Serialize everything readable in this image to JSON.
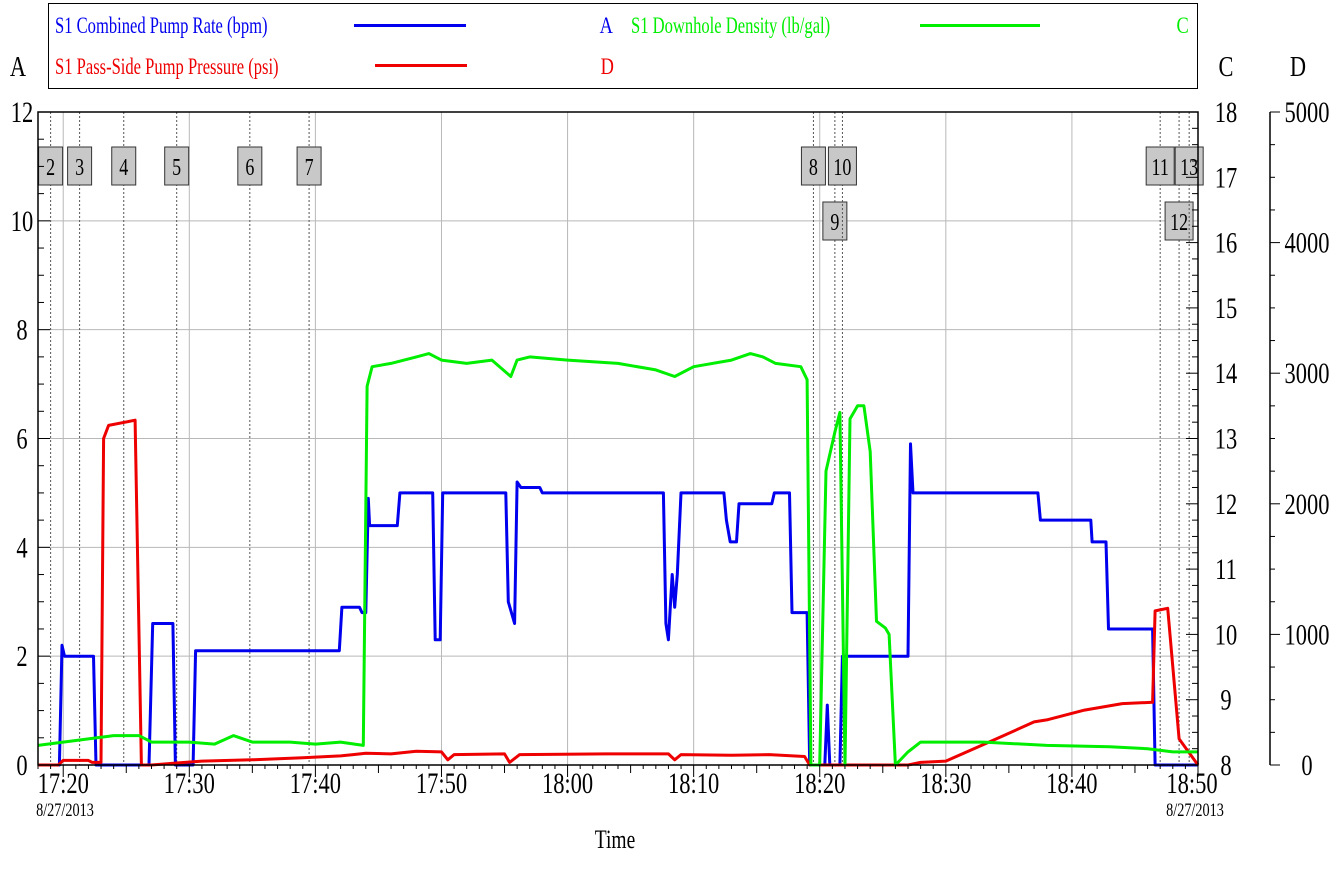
{
  "chart_data": {
    "type": "line",
    "xlabel": "Time",
    "x_tick_labels": [
      "17:20",
      "17:30",
      "17:40",
      "17:50",
      "18:00",
      "18:10",
      "18:20",
      "18:30",
      "18:40",
      "18:50"
    ],
    "date_left": "8/27/2013",
    "date_right": "8/27/2013",
    "x_range": [
      "17:18",
      "18:50"
    ],
    "axes": {
      "A": {
        "label": "A",
        "side": "left",
        "range": [
          0,
          12
        ],
        "ticks": [
          "0",
          "2",
          "4",
          "6",
          "8",
          "10",
          "12"
        ]
      },
      "C": {
        "label": "C",
        "side": "right",
        "range": [
          8,
          18
        ],
        "ticks": [
          "8",
          "9",
          "10",
          "11",
          "12",
          "13",
          "14",
          "15",
          "16",
          "17",
          "18"
        ]
      },
      "D": {
        "label": "D",
        "side": "right",
        "range": [
          0,
          5000
        ],
        "ticks": [
          "0",
          "1000",
          "2000",
          "3000",
          "4000",
          "5000"
        ]
      }
    },
    "grid": true,
    "legend_placement": "top",
    "series": [
      {
        "name": "S1 Combined Pump Rate (bpm)",
        "axis": "A",
        "axis_tag": "A",
        "color": "#0000ee",
        "points": [
          [
            0,
            0
          ],
          [
            1.7,
            0
          ],
          [
            1.9,
            2.2
          ],
          [
            2.1,
            2
          ],
          [
            4.4,
            2
          ],
          [
            4.6,
            0
          ],
          [
            8.8,
            0
          ],
          [
            9.1,
            2.6
          ],
          [
            10.7,
            2.6
          ],
          [
            10.9,
            0
          ],
          [
            12.3,
            0
          ],
          [
            12.5,
            2.1
          ],
          [
            23.9,
            2.1
          ],
          [
            24.1,
            2.9
          ],
          [
            25.5,
            2.9
          ],
          [
            25.7,
            2.8
          ],
          [
            26,
            2.8
          ],
          [
            26.2,
            4.9
          ],
          [
            26.3,
            4.4
          ],
          [
            28.5,
            4.4
          ],
          [
            28.7,
            5
          ],
          [
            31.3,
            5
          ],
          [
            31.5,
            2.3
          ],
          [
            31.9,
            2.3
          ],
          [
            32.1,
            5
          ],
          [
            37.1,
            5
          ],
          [
            37.3,
            3
          ],
          [
            37.8,
            2.6
          ],
          [
            38,
            5.2
          ],
          [
            38.3,
            5.1
          ],
          [
            39.8,
            5.1
          ],
          [
            40,
            5
          ],
          [
            49.6,
            5
          ],
          [
            49.8,
            2.6
          ],
          [
            50,
            2.3
          ],
          [
            50.3,
            3.5
          ],
          [
            50.5,
            2.9
          ],
          [
            50.7,
            3.5
          ],
          [
            51,
            5
          ],
          [
            54.4,
            5
          ],
          [
            54.6,
            4.5
          ],
          [
            54.9,
            4.1
          ],
          [
            55.4,
            4.1
          ],
          [
            55.6,
            4.8
          ],
          [
            58.2,
            4.8
          ],
          [
            58.4,
            5
          ],
          [
            59.6,
            5
          ],
          [
            59.8,
            2.8
          ],
          [
            61,
            2.8
          ],
          [
            61.2,
            0
          ],
          [
            62.4,
            0
          ],
          [
            62.6,
            1.1
          ],
          [
            62.8,
            0
          ],
          [
            63.6,
            0
          ],
          [
            63.8,
            2
          ],
          [
            69,
            2
          ],
          [
            69.2,
            5.9
          ],
          [
            69.4,
            5
          ],
          [
            79.3,
            5
          ],
          [
            79.5,
            4.5
          ],
          [
            83.5,
            4.5
          ],
          [
            83.6,
            4.1
          ],
          [
            84.7,
            4.1
          ],
          [
            84.9,
            2.5
          ],
          [
            88.4,
            2.5
          ],
          [
            88.6,
            0
          ],
          [
            92,
            0
          ]
        ]
      },
      {
        "name": "S1 Pass-Side Pump Pressure (psi)",
        "axis": "D",
        "axis_tag": "D",
        "color": "#ee0000",
        "points": [
          [
            0,
            0
          ],
          [
            1.6,
            0
          ],
          [
            2,
            35
          ],
          [
            4,
            35
          ],
          [
            4.3,
            20
          ],
          [
            5,
            20
          ],
          [
            5.2,
            2500
          ],
          [
            5.6,
            2600
          ],
          [
            7.7,
            2640
          ],
          [
            8.2,
            0
          ],
          [
            9,
            0
          ],
          [
            11,
            15
          ],
          [
            13,
            30
          ],
          [
            17,
            40
          ],
          [
            21,
            55
          ],
          [
            24,
            70
          ],
          [
            25,
            80
          ],
          [
            26,
            90
          ],
          [
            28,
            85
          ],
          [
            30,
            105
          ],
          [
            32,
            100
          ],
          [
            32.5,
            40
          ],
          [
            33,
            80
          ],
          [
            37,
            85
          ],
          [
            37.4,
            20
          ],
          [
            38.2,
            80
          ],
          [
            45,
            85
          ],
          [
            50,
            85
          ],
          [
            50.5,
            40
          ],
          [
            51,
            80
          ],
          [
            55,
            75
          ],
          [
            58,
            80
          ],
          [
            60.8,
            65
          ],
          [
            61.2,
            0
          ],
          [
            69,
            0
          ],
          [
            70,
            20
          ],
          [
            72,
            30
          ],
          [
            76,
            200
          ],
          [
            79,
            330
          ],
          [
            80,
            345
          ],
          [
            83,
            420
          ],
          [
            86,
            470
          ],
          [
            88.4,
            480
          ],
          [
            88.6,
            1180
          ],
          [
            89.6,
            1200
          ],
          [
            90.5,
            200
          ],
          [
            92,
            0
          ]
        ]
      },
      {
        "name": "S1 Downhole Density (lb/gal)",
        "axis": "C",
        "axis_tag": "C",
        "color": "#00ee00",
        "points": [
          [
            0,
            8.3
          ],
          [
            2,
            8.35
          ],
          [
            4,
            8.4
          ],
          [
            6,
            8.45
          ],
          [
            8,
            8.45
          ],
          [
            9,
            8.35
          ],
          [
            12,
            8.35
          ],
          [
            14,
            8.32
          ],
          [
            15.5,
            8.45
          ],
          [
            17,
            8.35
          ],
          [
            20,
            8.35
          ],
          [
            22,
            8.32
          ],
          [
            24,
            8.35
          ],
          [
            25.8,
            8.3
          ],
          [
            26.1,
            13.8
          ],
          [
            26.5,
            14.1
          ],
          [
            28,
            14.15
          ],
          [
            30,
            14.25
          ],
          [
            31,
            14.3
          ],
          [
            32,
            14.2
          ],
          [
            34,
            14.15
          ],
          [
            36,
            14.2
          ],
          [
            37.5,
            13.95
          ],
          [
            38,
            14.2
          ],
          [
            39,
            14.25
          ],
          [
            42,
            14.2
          ],
          [
            46,
            14.15
          ],
          [
            49,
            14.05
          ],
          [
            50.5,
            13.95
          ],
          [
            52,
            14.1
          ],
          [
            55,
            14.2
          ],
          [
            56.5,
            14.3
          ],
          [
            57.5,
            14.25
          ],
          [
            58.5,
            14.15
          ],
          [
            60.5,
            14.1
          ],
          [
            61,
            13.9
          ],
          [
            61.3,
            8
          ],
          [
            62,
            8
          ],
          [
            62.5,
            12.5
          ],
          [
            63.2,
            13.1
          ],
          [
            63.6,
            13.4
          ],
          [
            64,
            8
          ],
          [
            64.4,
            13.3
          ],
          [
            65,
            13.5
          ],
          [
            65.5,
            13.5
          ],
          [
            66,
            12.8
          ],
          [
            66.5,
            10.2
          ],
          [
            67.2,
            10.1
          ],
          [
            67.5,
            10
          ],
          [
            68,
            8
          ],
          [
            68.5,
            8.1
          ],
          [
            69,
            8.2
          ],
          [
            70,
            8.35
          ],
          [
            75,
            8.35
          ],
          [
            80,
            8.3
          ],
          [
            85,
            8.28
          ],
          [
            88,
            8.25
          ],
          [
            90,
            8.2
          ],
          [
            92,
            8.2
          ]
        ]
      }
    ],
    "event_markers": [
      {
        "label": "2",
        "t": 1.0,
        "row": 0
      },
      {
        "label": "3",
        "t": 3.3,
        "row": 0
      },
      {
        "label": "4",
        "t": 6.8,
        "row": 0
      },
      {
        "label": "5",
        "t": 11.0,
        "row": 0
      },
      {
        "label": "6",
        "t": 16.8,
        "row": 0
      },
      {
        "label": "7",
        "t": 21.5,
        "row": 0
      },
      {
        "label": "8",
        "t": 61.5,
        "row": 0
      },
      {
        "label": "9",
        "t": 63.2,
        "row": 1
      },
      {
        "label": "10",
        "t": 63.8,
        "row": 0
      },
      {
        "label": "11",
        "t": 89.0,
        "row": 0
      },
      {
        "label": "12",
        "t": 90.5,
        "row": 1
      },
      {
        "label": "13",
        "t": 91.3,
        "row": 0
      }
    ]
  }
}
